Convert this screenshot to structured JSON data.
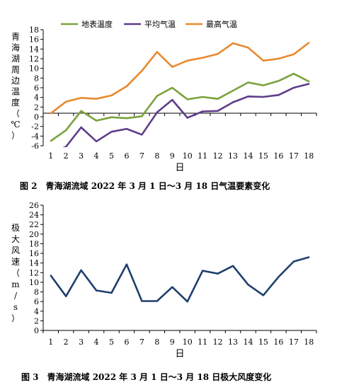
{
  "chart_data": [
    {
      "type": "line",
      "x": [
        1,
        2,
        3,
        4,
        5,
        6,
        7,
        8,
        9,
        10,
        11,
        12,
        13,
        14,
        15,
        16,
        17,
        18
      ],
      "series": [
        {
          "name": "地表温度",
          "color": "#7aa23c",
          "values": [
            -5.0,
            -2.8,
            1.2,
            -0.8,
            -0.1,
            -0.3,
            0.1,
            4.3,
            6.0,
            3.6,
            4.1,
            3.7,
            5.4,
            7.1,
            6.5,
            7.4,
            8.9,
            7.3
          ]
        },
        {
          "name": "平均气温",
          "color": "#5e3d8a",
          "values": [
            -7.5,
            -6.2,
            -2.2,
            -5.1,
            -3.1,
            -2.5,
            -3.7,
            0.9,
            3.5,
            -0.2,
            1.1,
            1.2,
            3.0,
            4.2,
            4.1,
            4.5,
            6.0,
            6.8
          ]
        },
        {
          "name": "最高气温",
          "color": "#e8892f",
          "values": [
            0.7,
            3.1,
            3.9,
            3.7,
            4.4,
            6.3,
            9.5,
            13.4,
            10.3,
            11.6,
            12.2,
            13.0,
            15.2,
            14.3,
            11.6,
            12.0,
            12.9,
            15.3
          ]
        }
      ],
      "ylabel": "青海湖周边温度（℃）",
      "ylabel_chars": [
        "青",
        "海",
        "湖",
        "周",
        "边",
        "温",
        "度",
        "（",
        "℃",
        "）"
      ],
      "xlabel": "日",
      "ylim": [
        -6,
        18
      ],
      "yticks": [
        -6,
        -4,
        -2,
        0,
        2,
        4,
        6,
        8,
        10,
        12,
        14,
        16,
        18
      ],
      "legend": "top",
      "caption": "图 2　青海湖流域 2022 年 3 月 1 日～3 月 18 日气温要素变化"
    },
    {
      "type": "line",
      "x": [
        1,
        2,
        3,
        4,
        5,
        6,
        7,
        8,
        9,
        10,
        11,
        12,
        13,
        14,
        15,
        16,
        17,
        18
      ],
      "series": [
        {
          "name": "",
          "color": "#1f3f6e",
          "values": [
            11.4,
            7.1,
            12.5,
            8.3,
            7.8,
            13.7,
            6.1,
            6.1,
            9.0,
            6.0,
            12.4,
            11.8,
            13.4,
            9.5,
            7.3,
            11.1,
            14.3,
            15.2
          ]
        }
      ],
      "ylabel": "极大风速（m/s）",
      "ylabel_chars": [
        "极",
        "大",
        "风",
        "速",
        "（",
        "m",
        "/",
        "s",
        "）"
      ],
      "xlabel": "日",
      "ylim": [
        0,
        26
      ],
      "yticks": [
        0,
        2,
        4,
        6,
        8,
        10,
        12,
        14,
        16,
        18,
        20,
        22,
        24,
        26
      ],
      "caption": "图 3　青海湖流域 2022 年 3 月 1 日～3 月 18 日极大风度变化"
    }
  ]
}
